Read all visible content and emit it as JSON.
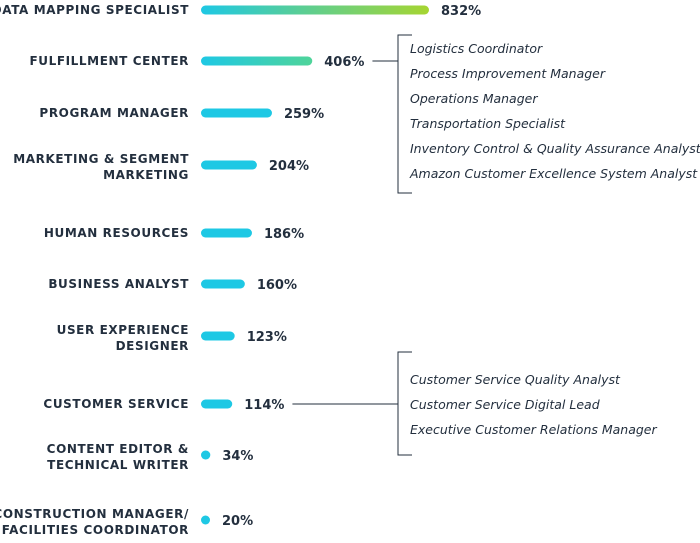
{
  "chart_data": {
    "type": "bar",
    "orientation": "horizontal",
    "unit": "%",
    "categories": [
      [
        "DATA MAPPING SPECIALIST"
      ],
      [
        "FULFILLMENT CENTER"
      ],
      [
        "PROGRAM MANAGER"
      ],
      [
        "MARKETING & SEGMENT",
        "MARKETING"
      ],
      [
        "HUMAN RESOURCES"
      ],
      [
        "BUSINESS ANALYST"
      ],
      [
        "USER EXPERIENCE",
        "DESIGNER"
      ],
      [
        "CUSTOMER SERVICE"
      ],
      [
        "CONTENT EDITOR &",
        "TECHNICAL WRITER"
      ],
      [
        "CONSTRUCTION MANAGER/",
        "FACILITIES COORDINATOR"
      ]
    ],
    "values": [
      832,
      406,
      259,
      204,
      186,
      160,
      123,
      114,
      34,
      20
    ],
    "value_labels": [
      "832%",
      "406%",
      "259%",
      "204%",
      "186%",
      "160%",
      "123%",
      "114%",
      "34%",
      "20%"
    ],
    "annotations": [
      {
        "category_index": 1,
        "items": [
          "Logistics Coordinator",
          "Process Improvement Manager",
          "Operations Manager",
          "Transportation Specialist",
          "Inventory Control & Quality Assurance Analyst",
          "Amazon Customer Excellence System Analyst"
        ]
      },
      {
        "category_index": 7,
        "items": [
          "Customer Service Quality Analyst",
          "Customer Service Digital Lead",
          "Executive Customer Relations Manager"
        ]
      }
    ],
    "colors": {
      "bar_start": "#1ec8e4",
      "bar_end_top": "#a6d531",
      "bar_end_second": "#4fd49a",
      "text": "#232f3e"
    },
    "grid": false,
    "legend": "none"
  }
}
